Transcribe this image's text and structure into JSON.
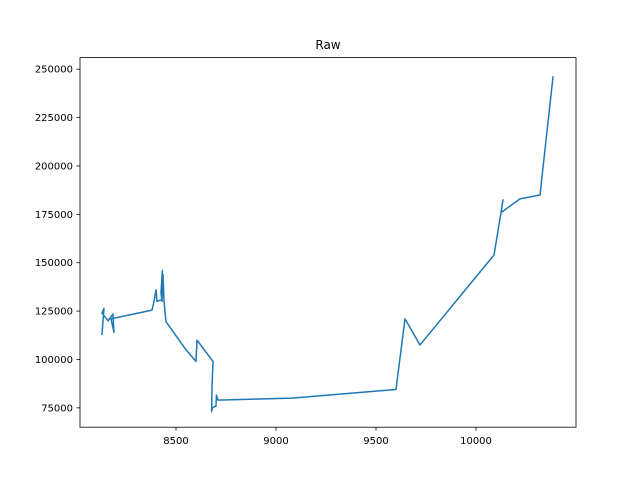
{
  "chart_data": {
    "type": "line",
    "title": "Raw",
    "xlabel": "",
    "ylabel": "",
    "xlim": [
      8020,
      10500
    ],
    "ylim": [
      65000,
      256000
    ],
    "x_ticks": [
      8500,
      9000,
      9500,
      10000
    ],
    "x_tick_labels": [
      "8500",
      "9000",
      "9500",
      "10000"
    ],
    "y_ticks": [
      75000,
      100000,
      125000,
      150000,
      175000,
      200000,
      225000,
      250000
    ],
    "y_tick_labels": [
      "75000",
      "100000",
      "125000",
      "150000",
      "175000",
      "200000",
      "225000",
      "250000"
    ],
    "grid": false,
    "legend": "none",
    "series": [
      {
        "color": "#1f77b4",
        "x": [
          8130,
          8140,
          8130,
          8145,
          8160,
          8185,
          8190,
          8175,
          8380,
          8390,
          8400,
          8405,
          8430,
          8432,
          8425,
          8430,
          8435,
          8440,
          8450,
          8550,
          8600,
          8605,
          8685,
          8680,
          8678,
          8682,
          8700,
          8702,
          8710,
          9080,
          9600,
          9645,
          9720,
          10090,
          10130,
          10135,
          10125,
          10140,
          10220,
          10320,
          10385
        ],
        "y": [
          113000,
          126500,
          124000,
          122000,
          120000,
          123500,
          114000,
          121000,
          125500,
          130000,
          136000,
          130000,
          131000,
          146000,
          134500,
          130000,
          144000,
          130000,
          119500,
          105000,
          99000,
          110000,
          99000,
          86000,
          73000,
          75000,
          76000,
          81500,
          79000,
          80000,
          84500,
          121000,
          107500,
          154000,
          179000,
          182500,
          176000,
          177000,
          183000,
          185000,
          246000
        ]
      }
    ]
  }
}
